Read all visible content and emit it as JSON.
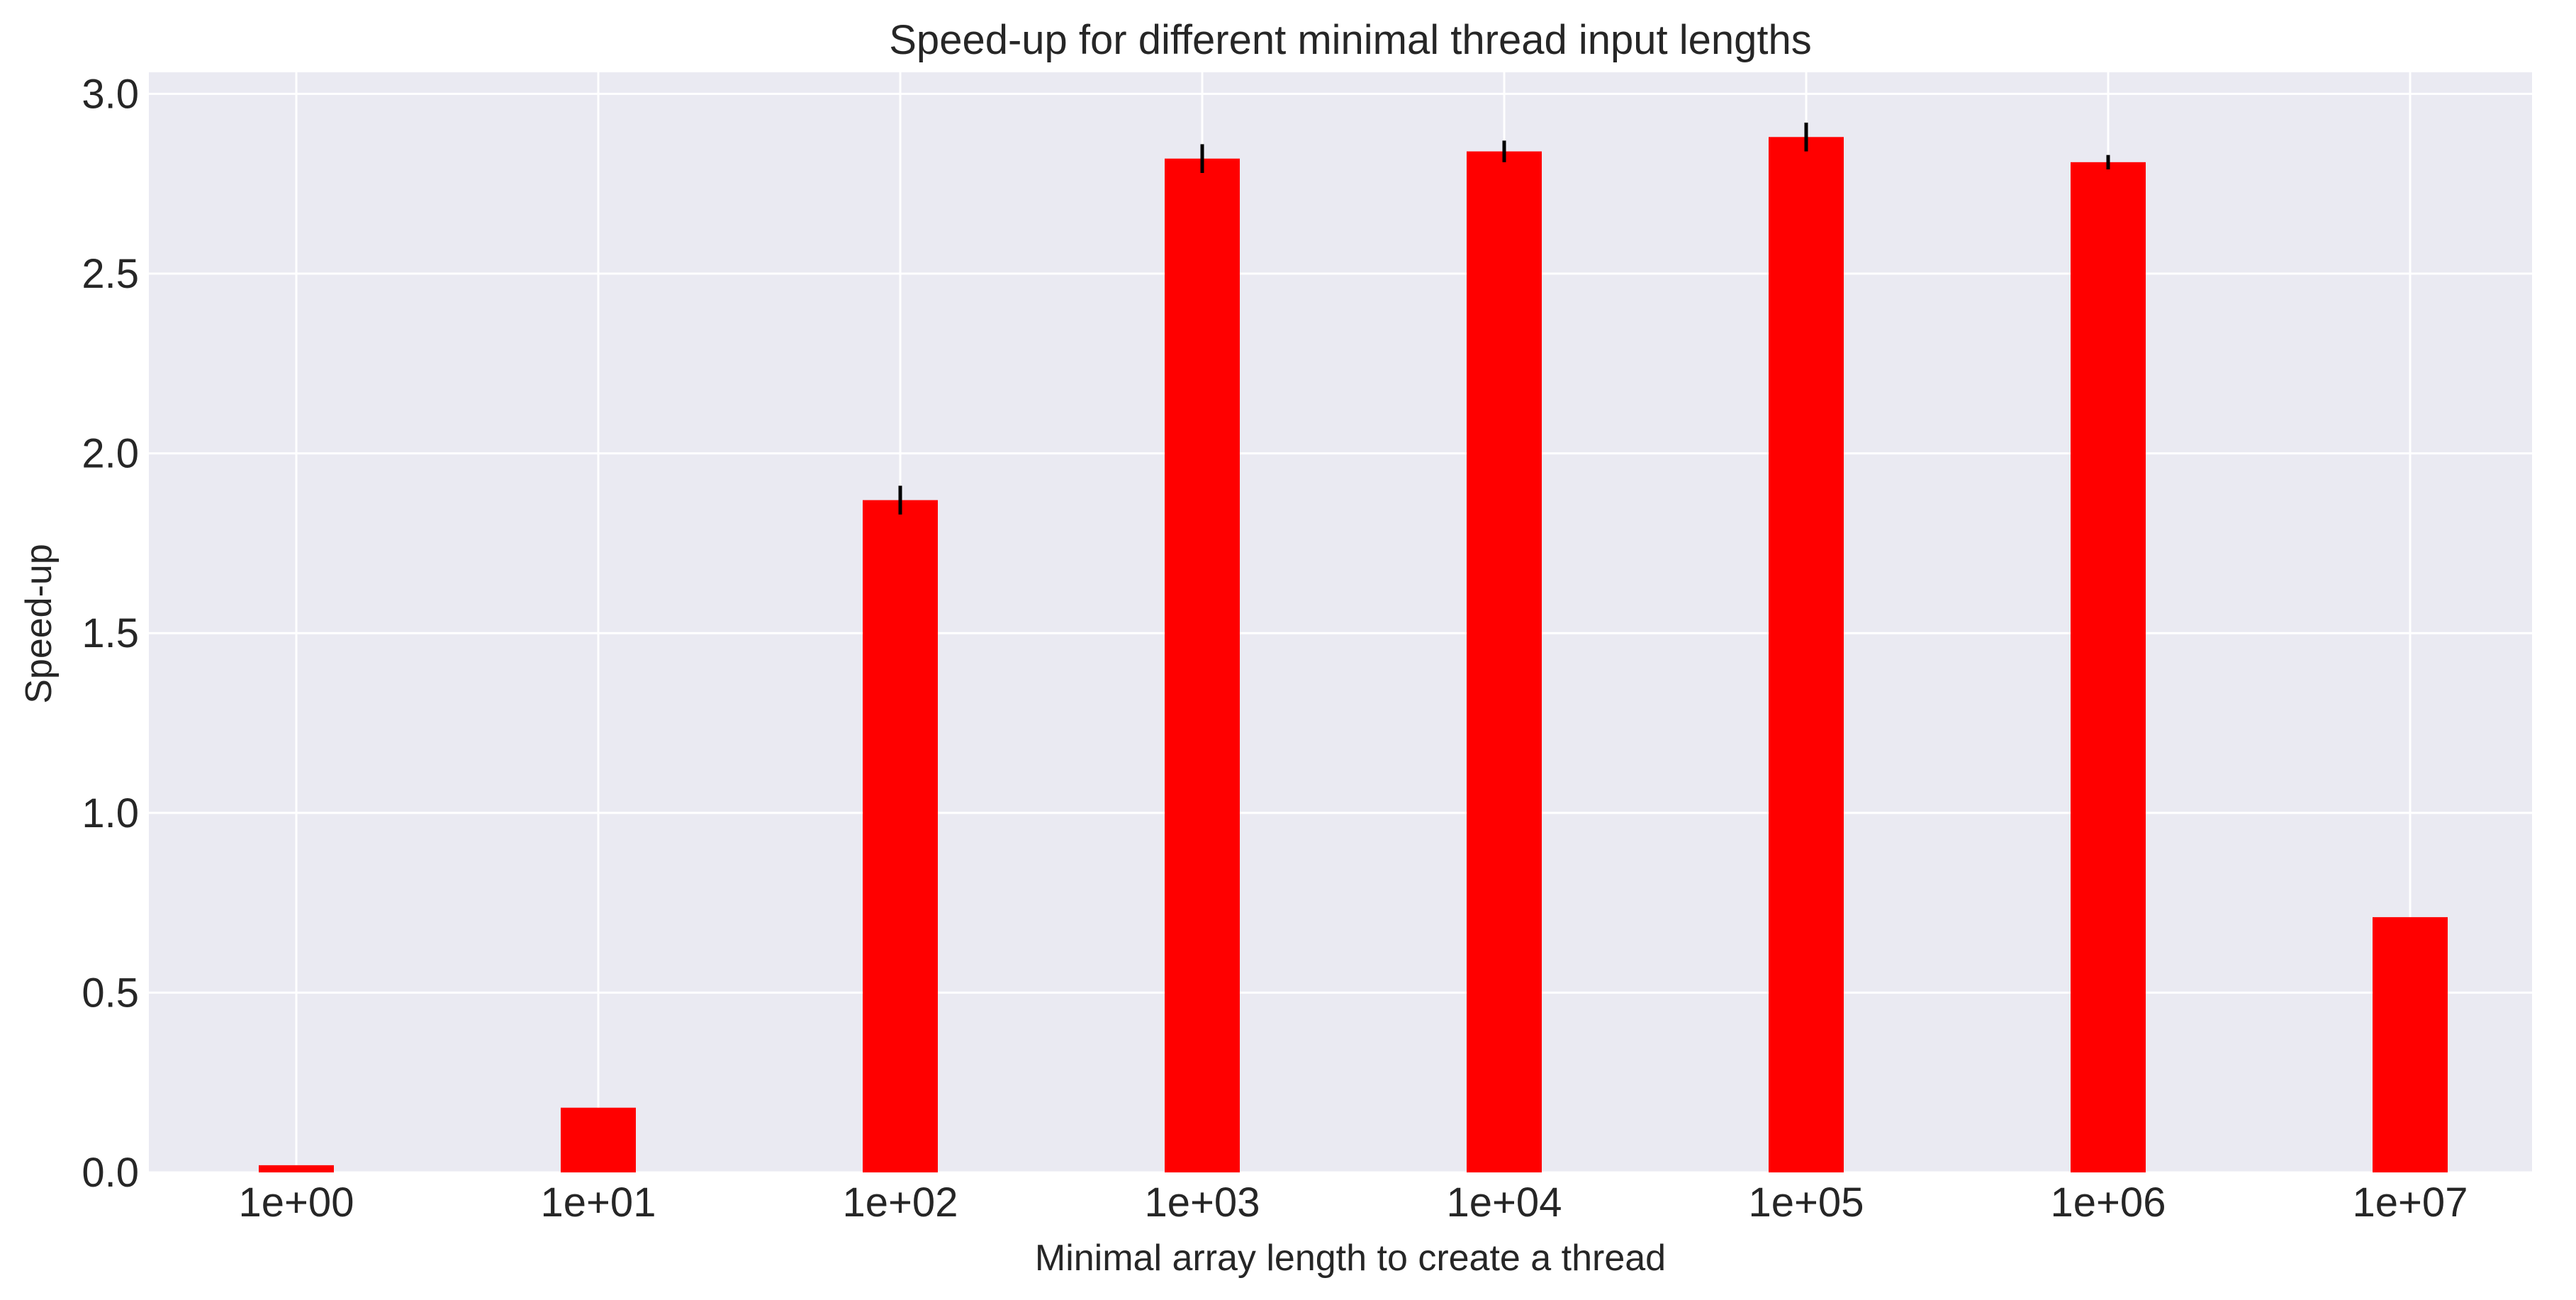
{
  "chart_data": {
    "type": "bar",
    "title": "Speed-up for different minimal thread input lengths",
    "xlabel": "Minimal array length to create a thread",
    "ylabel": "Speed-up",
    "categories": [
      "1e+00",
      "1e+01",
      "1e+02",
      "1e+03",
      "1e+04",
      "1e+05",
      "1e+06",
      "1e+07"
    ],
    "values": [
      0.02,
      0.18,
      1.87,
      2.82,
      2.84,
      2.88,
      2.81,
      0.71
    ],
    "errors": [
      0.0,
      0.0,
      0.04,
      0.04,
      0.03,
      0.04,
      0.02,
      0.0
    ],
    "ylim": [
      0,
      3.06
    ],
    "yticks": [
      0.0,
      0.5,
      1.0,
      1.5,
      2.0,
      2.5,
      3.0
    ],
    "ytick_labels": [
      "0.0",
      "0.5",
      "1.0",
      "1.5",
      "2.0",
      "2.5",
      "3.0"
    ],
    "grid": true,
    "colors": {
      "bar": "#ff0000",
      "error_bar": "#000000",
      "plot_background": "#eaeaf2",
      "grid": "#ffffff",
      "text": "#262626"
    }
  }
}
